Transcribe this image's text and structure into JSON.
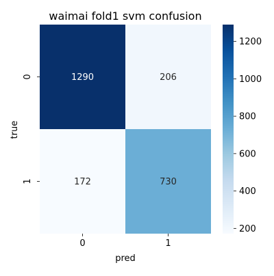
{
  "chart_data": {
    "type": "heatmap",
    "title": "waimai fold1 svm confusion",
    "xlabel": "pred",
    "ylabel": "true",
    "x_categories": [
      "0",
      "1"
    ],
    "y_categories": [
      "0",
      "1"
    ],
    "values": [
      [
        1290,
        206
      ],
      [
        172,
        730
      ]
    ],
    "colormap": "Blues",
    "colorbar": {
      "range": [
        172,
        1290
      ],
      "ticks": [
        200,
        400,
        600,
        800,
        1000,
        1200
      ]
    },
    "annotations": true,
    "grid": false
  }
}
